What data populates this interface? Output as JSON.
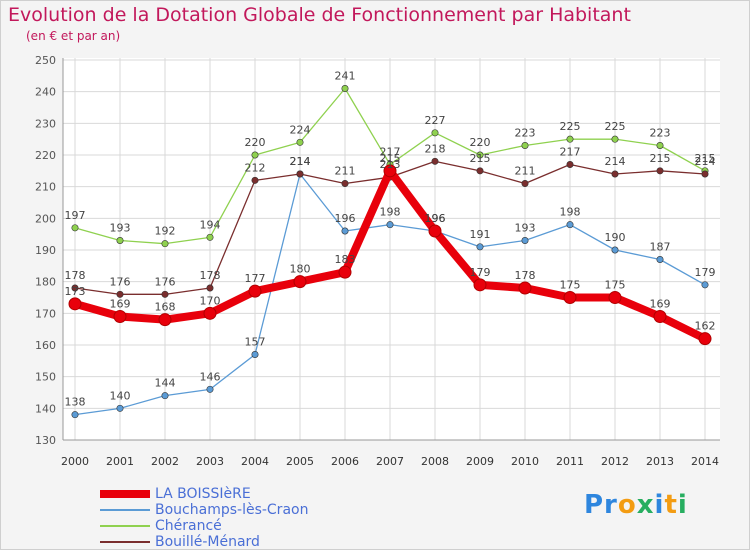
{
  "header": {
    "title": "Evolution de la Dotation Globale de Fonctionnement par Habitant",
    "subtitle": "(en € et par an)"
  },
  "brand": {
    "logo_text": "Proxiti"
  },
  "colors": {
    "title": "#c2185b",
    "grid": "#d9d9d9",
    "legend_text": "#4a6fd6"
  },
  "chart_data": {
    "type": "line",
    "x": [
      "2000",
      "2001",
      "2002",
      "2003",
      "2004",
      "2005",
      "2006",
      "2007",
      "2008",
      "2009",
      "2010",
      "2011",
      "2012",
      "2013",
      "2014"
    ],
    "ylim": [
      130,
      250
    ],
    "yticks": [
      130,
      140,
      150,
      160,
      170,
      180,
      190,
      200,
      210,
      220,
      230,
      240,
      250
    ],
    "grid": true,
    "legend_position": "bottom-left",
    "series": [
      {
        "name": "LA BOISSIèRE",
        "color": "#e8000b",
        "values": [
          173,
          169,
          168,
          170,
          177,
          180,
          183,
          215,
          196,
          179,
          178,
          175,
          175,
          169,
          162
        ]
      },
      {
        "name": "Bouchamps-lès-Craon",
        "color": "#5b9bd5",
        "values": [
          138,
          140,
          144,
          146,
          157,
          214,
          196,
          198,
          196,
          191,
          193,
          198,
          190,
          187,
          179
        ]
      },
      {
        "name": "Chérancé",
        "color": "#8fd14f",
        "values": [
          197,
          193,
          192,
          194,
          220,
          224,
          241,
          217,
          227,
          220,
          223,
          225,
          225,
          223,
          215
        ]
      },
      {
        "name": "Bouillé-Ménard",
        "color": "#7a2e2e",
        "values": [
          178,
          176,
          176,
          178,
          212,
          214,
          211,
          213,
          218,
          215,
          211,
          217,
          214,
          215,
          214
        ]
      }
    ]
  }
}
